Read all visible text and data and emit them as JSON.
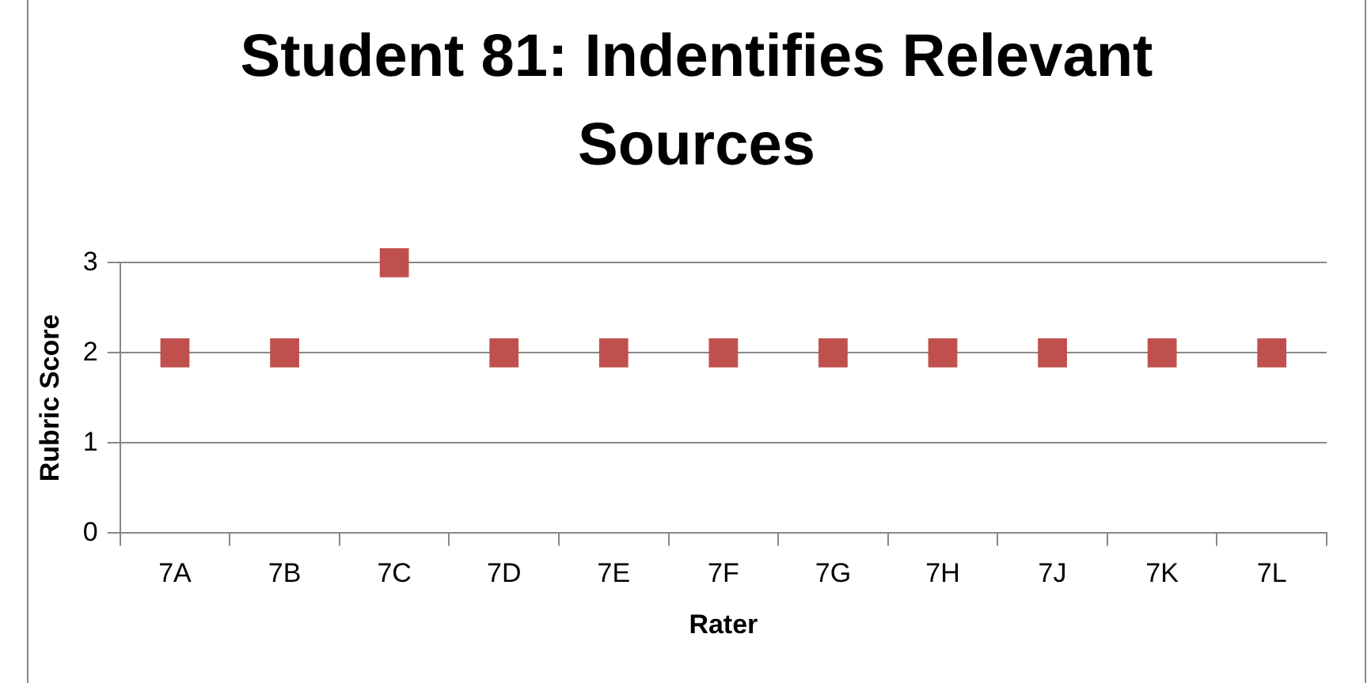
{
  "chart_data": {
    "type": "scatter",
    "title": "Student 81: Indentifies Relevant Sources",
    "xlabel": "Rater",
    "ylabel": "Rubric Score",
    "categories": [
      "7A",
      "7B",
      "7C",
      "7D",
      "7E",
      "7F",
      "7G",
      "7H",
      "7J",
      "7K",
      "7L"
    ],
    "values": [
      2,
      2,
      3,
      2,
      2,
      2,
      2,
      2,
      2,
      2,
      2
    ],
    "color": "#c0504d",
    "marker": "square",
    "ylim": [
      0,
      3
    ],
    "yticks": [
      0,
      1,
      2,
      3
    ],
    "grid": "y",
    "legend": false
  }
}
